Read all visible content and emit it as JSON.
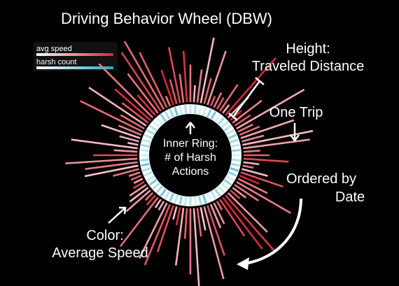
{
  "title": "Driving Behavior Wheel (DBW)",
  "legend": {
    "items": [
      {
        "label": "avg speed",
        "gradient_from": "#ffffff",
        "gradient_to": "#e0202c"
      },
      {
        "label": "harsh count",
        "gradient_from": "#ffffff",
        "gradient_to": "#2aa9c4"
      }
    ]
  },
  "annotations": {
    "height": [
      "Height:",
      "Traveled Distance"
    ],
    "one_trip": "One Trip",
    "inner_ring": [
      "Inner Ring:",
      "# of Harsh",
      "Actions"
    ],
    "ordered": [
      "Ordered by",
      "Date"
    ],
    "color": [
      "Color:",
      "Average Speed"
    ]
  },
  "colors": {
    "background": "#000000",
    "bar_low": "#f3c4c8",
    "bar_high": "#d81e2c",
    "ring_low": "#ffffff",
    "ring_high": "#3aa8c8",
    "arrow": "#ffffff"
  },
  "icons": [
    "up-arrow-icon",
    "down-arrow-icon",
    "curved-arrow-icon",
    "pointer-arrow-icon"
  ]
}
